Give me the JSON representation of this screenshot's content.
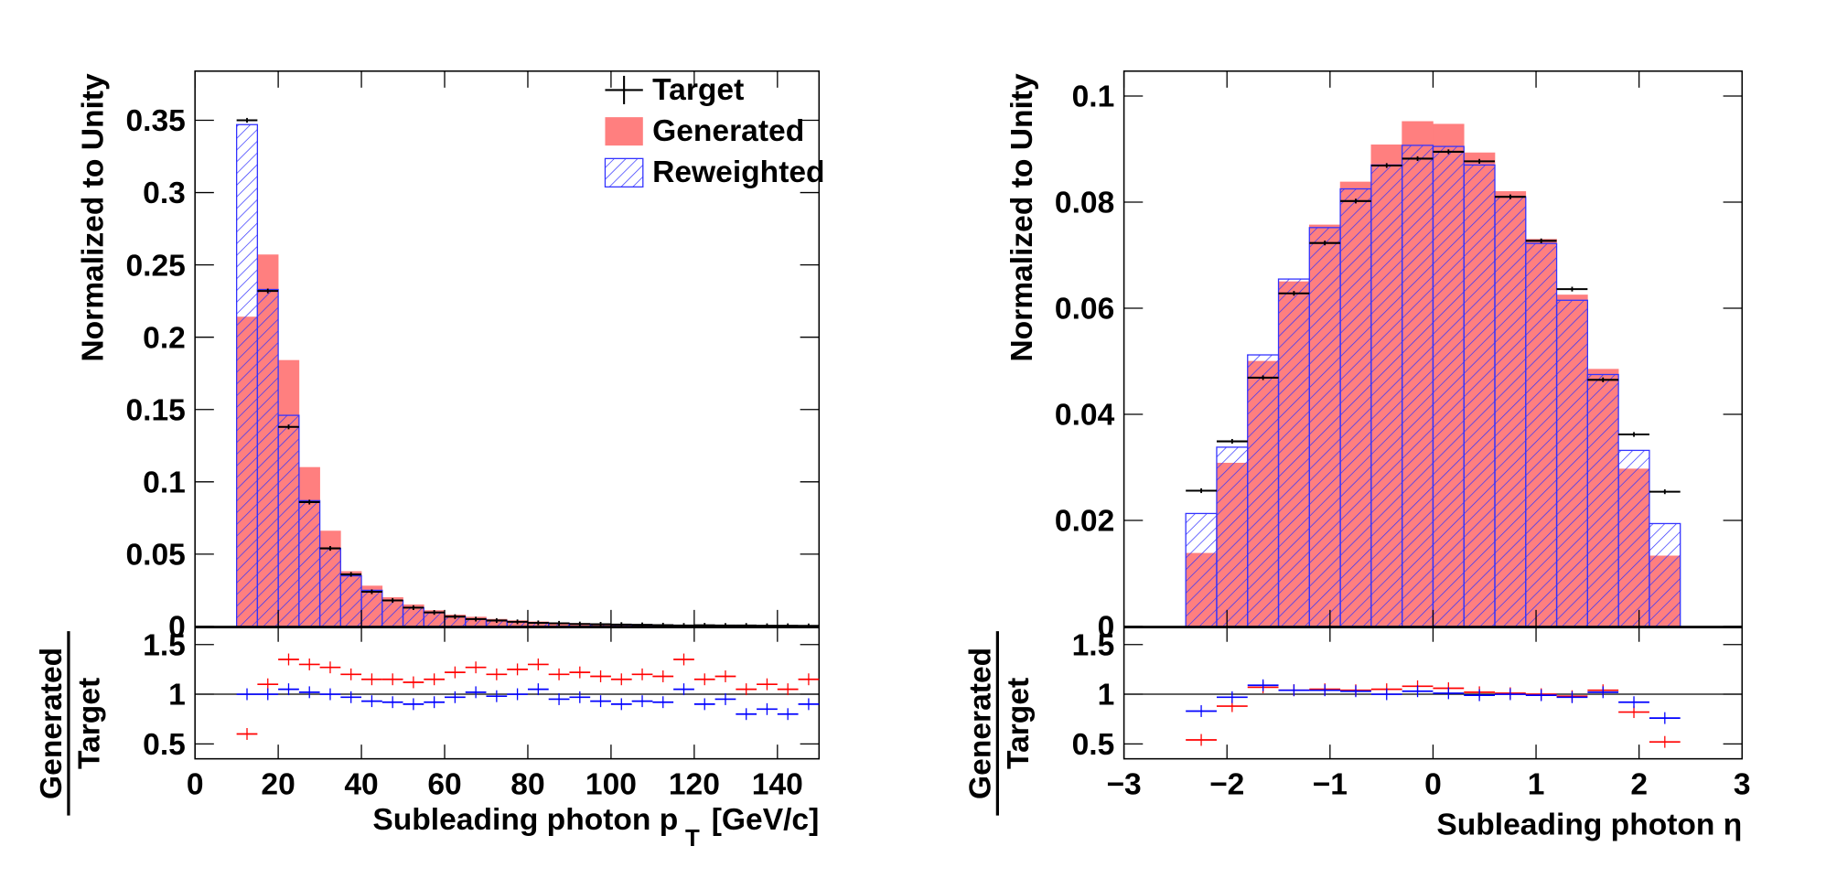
{
  "chart_data": [
    {
      "type": "histogram",
      "y_label": "Normalized to Unity",
      "x_label": "Subleading photon p",
      "x_label_sub": "T",
      "x_label_unit": "[GeV/c]",
      "bins": [
        10,
        15,
        20,
        25,
        30,
        35,
        40,
        45,
        50,
        55,
        60,
        65,
        70,
        75,
        80,
        85,
        90,
        95,
        100,
        105,
        110,
        115,
        120,
        125,
        130,
        135,
        140,
        145,
        150
      ],
      "series": [
        {
          "name": "Target",
          "color": "#000000",
          "style": "points",
          "values": [
            0.35,
            0.232,
            0.138,
            0.086,
            0.054,
            0.036,
            0.024,
            0.018,
            0.013,
            0.0097,
            0.0068,
            0.0051,
            0.0041,
            0.0032,
            0.0025,
            0.0022,
            0.0017,
            0.0015,
            0.0013,
            0.0011,
            0.0009,
            0.0007,
            0.0008,
            0.0007,
            0.0007,
            0.0005,
            0.0005,
            0.0004
          ]
        },
        {
          "name": "Generated",
          "color": "#ff7f7f",
          "style": "filled",
          "values": [
            0.214,
            0.257,
            0.184,
            0.11,
            0.066,
            0.038,
            0.028,
            0.02,
            0.015,
            0.011,
            0.008,
            0.0065,
            0.005,
            0.004,
            0.0032,
            0.0026,
            0.0021,
            0.0018,
            0.0015,
            0.0013,
            0.0011,
            0.001,
            0.0009,
            0.0008,
            0.0007,
            0.0006,
            0.0005,
            0.0005
          ]
        },
        {
          "name": "Reweighted",
          "color": "#3333ff",
          "style": "hatched",
          "values": [
            0.347,
            0.233,
            0.146,
            0.087,
            0.054,
            0.035,
            0.025,
            0.018,
            0.013,
            0.0095,
            0.0068,
            0.0052,
            0.0041,
            0.0033,
            0.0026,
            0.0021,
            0.0017,
            0.0014,
            0.0012,
            0.001,
            0.0009,
            0.0008,
            0.0007,
            0.0006,
            0.0005,
            0.0004,
            0.0004,
            0.0004
          ]
        }
      ],
      "xlim": [
        0,
        150
      ],
      "xticks": [
        0,
        20,
        40,
        60,
        80,
        100,
        120,
        140
      ],
      "ylim": [
        0,
        0.384
      ],
      "yticks": [
        0,
        0.05,
        0.1,
        0.15,
        0.2,
        0.25,
        0.3,
        0.35
      ],
      "legend": "top-right",
      "ratio": {
        "numerator_label": "Generated",
        "denominator_label": "Target",
        "ylim": [
          0.35,
          1.67
        ],
        "yticks": [
          0.5,
          1,
          1.5
        ],
        "reference_line": 1,
        "series": [
          {
            "color": "#ff0000",
            "values": [
              0.6,
              1.1,
              1.35,
              1.3,
              1.27,
              1.2,
              1.15,
              1.15,
              1.12,
              1.15,
              1.22,
              1.27,
              1.2,
              1.25,
              1.3,
              1.2,
              1.22,
              1.18,
              1.15,
              1.2,
              1.18,
              1.35,
              1.15,
              1.18,
              1.05,
              1.1,
              1.05,
              1.15
            ]
          },
          {
            "color": "#0000ff",
            "values": [
              1.0,
              1.0,
              1.05,
              1.02,
              1.0,
              0.97,
              0.93,
              0.92,
              0.9,
              0.92,
              0.97,
              1.02,
              0.98,
              1.0,
              1.05,
              0.95,
              0.97,
              0.93,
              0.9,
              0.93,
              0.92,
              1.05,
              0.9,
              0.95,
              0.8,
              0.85,
              0.8,
              0.9
            ]
          }
        ]
      }
    },
    {
      "type": "histogram",
      "y_label": "Normalized to Unity",
      "x_label": "Subleading photon  η",
      "bins": [
        -2.4,
        -2.1,
        -1.8,
        -1.5,
        -1.2,
        -0.9,
        -0.6,
        -0.3,
        0,
        0.3,
        0.6,
        0.9,
        1.2,
        1.5,
        1.8,
        2.1,
        2.4
      ],
      "series": [
        {
          "color": "#000000",
          "style": "points",
          "values": [
            0.0256,
            0.0349,
            0.0469,
            0.0628,
            0.0723,
            0.0802,
            0.0869,
            0.0882,
            0.0895,
            0.0877,
            0.081,
            0.0727,
            0.0636,
            0.0465,
            0.0362,
            0.0254
          ]
        },
        {
          "color": "#ff7f7f",
          "style": "filled",
          "values": [
            0.0138,
            0.0308,
            0.05,
            0.065,
            0.0757,
            0.0838,
            0.0908,
            0.0952,
            0.0947,
            0.0893,
            0.082,
            0.073,
            0.0625,
            0.0485,
            0.0297,
            0.0133
          ]
        },
        {
          "color": "#3333ff",
          "style": "hatched",
          "values": [
            0.0213,
            0.0338,
            0.0512,
            0.0655,
            0.0752,
            0.0825,
            0.087,
            0.0907,
            0.0905,
            0.087,
            0.081,
            0.0722,
            0.0615,
            0.0475,
            0.0332,
            0.0194
          ]
        }
      ],
      "xlim": [
        -3,
        3
      ],
      "xticks": [
        {
          "value": -3,
          "label": "−3"
        },
        {
          "value": -2,
          "label": "−2"
        },
        {
          "value": -1,
          "label": "−1"
        },
        0,
        1,
        2,
        3
      ],
      "ylim": [
        0,
        0.1047
      ],
      "yticks": [
        0,
        0.02,
        0.04,
        0.06,
        0.08,
        0.1
      ],
      "ratio": {
        "numerator_label": "Generated",
        "denominator_label": "Target",
        "ylim": [
          0.35,
          1.67
        ],
        "yticks": [
          0.5,
          1,
          1.5
        ],
        "reference_line": 1,
        "series": [
          {
            "color": "#ff0000",
            "values": [
              0.54,
              0.88,
              1.07,
              1.04,
              1.05,
              1.04,
              1.05,
              1.08,
              1.06,
              1.02,
              1.01,
              1.0,
              0.98,
              1.04,
              0.82,
              0.52
            ]
          },
          {
            "color": "#0000ff",
            "values": [
              0.83,
              0.97,
              1.09,
              1.04,
              1.04,
              1.03,
              1.0,
              1.03,
              1.01,
              0.99,
              1.0,
              0.99,
              0.97,
              1.02,
              0.92,
              0.76
            ]
          }
        ]
      }
    }
  ]
}
